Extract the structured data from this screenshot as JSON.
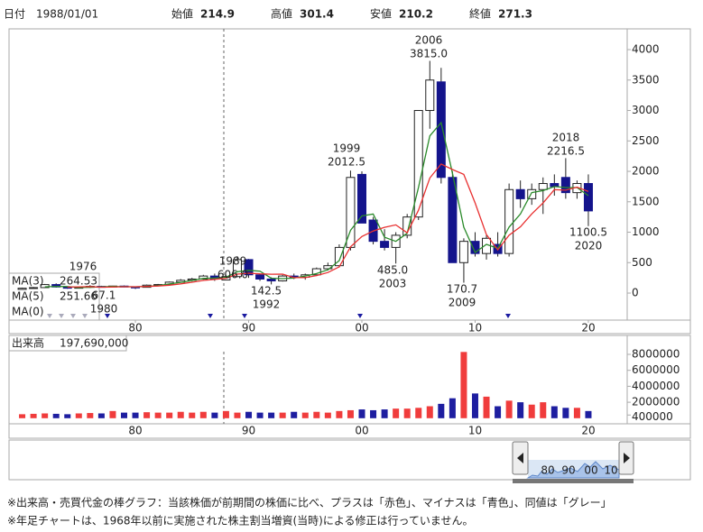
{
  "header": {
    "date_label": "日付",
    "date": "1988/01/01",
    "fields": [
      {
        "label": "始値",
        "value": 214.9,
        "color": "#000000"
      },
      {
        "label": "高値",
        "value": 301.4,
        "color": "#e02020"
      },
      {
        "label": "安値",
        "value": 210.2,
        "color": "#1a8a1a"
      },
      {
        "label": "終値",
        "value": 271.3,
        "color": "#000000"
      }
    ]
  },
  "chart_data": [
    {
      "type": "candlestick",
      "x": [
        1970,
        1971,
        1972,
        1973,
        1974,
        1975,
        1976,
        1977,
        1978,
        1979,
        1980,
        1981,
        1982,
        1983,
        1984,
        1985,
        1986,
        1987,
        1988,
        1989,
        1990,
        1991,
        1992,
        1993,
        1994,
        1995,
        1996,
        1997,
        1998,
        1999,
        2000,
        2001,
        2002,
        2003,
        2004,
        2005,
        2006,
        2007,
        2008,
        2009,
        2010,
        2011,
        2012,
        2013,
        2014,
        2015,
        2016,
        2017,
        2018,
        2019,
        2020
      ],
      "open": [
        60,
        80,
        90,
        140,
        100,
        80,
        95,
        110,
        100,
        115,
        100,
        95,
        130,
        140,
        180,
        210,
        230,
        280,
        214.9,
        271.3,
        550,
        300,
        230,
        200,
        280,
        260,
        300,
        400,
        450,
        750,
        1950,
        1200,
        850,
        750,
        950,
        1250,
        3000,
        3470,
        1900,
        500,
        850,
        650,
        800,
        650,
        1700,
        1550,
        1700,
        1800,
        1900,
        1650,
        1800
      ],
      "high": [
        90,
        100,
        150,
        160,
        110,
        100,
        130,
        120,
        120,
        125,
        110,
        140,
        150,
        190,
        230,
        250,
        300,
        320,
        301.4,
        606,
        560,
        320,
        260,
        300,
        320,
        320,
        420,
        500,
        800,
        2012.5,
        2000,
        1250,
        1050,
        1000,
        1300,
        3000,
        3815,
        3700,
        2000,
        900,
        1000,
        950,
        1000,
        1800,
        1850,
        1800,
        1900,
        1950,
        2216.5,
        1850,
        1950
      ],
      "low": [
        55,
        70,
        85,
        90,
        70,
        75,
        85,
        90,
        95,
        95,
        67.1,
        90,
        110,
        130,
        170,
        190,
        220,
        200,
        210.2,
        260,
        250,
        200,
        142.5,
        190,
        230,
        220,
        280,
        370,
        420,
        700,
        1150,
        800,
        700,
        485,
        900,
        1200,
        2700,
        1800,
        500,
        170.7,
        600,
        550,
        600,
        600,
        1400,
        1450,
        1300,
        1600,
        1550,
        1550,
        1100.5
      ],
      "close": [
        80,
        90,
        140,
        100,
        80,
        95,
        110,
        100,
        115,
        100,
        95,
        130,
        140,
        180,
        210,
        230,
        280,
        230,
        271.3,
        550,
        300,
        230,
        200,
        280,
        260,
        300,
        400,
        450,
        750,
        1900,
        1150,
        850,
        750,
        950,
        1250,
        3000,
        3500,
        1900,
        500,
        850,
        650,
        900,
        650,
        1700,
        1550,
        1700,
        1800,
        1750,
        1650,
        1800,
        1350
      ],
      "up_color": "#ffffff",
      "down_color": "#14148c",
      "series": [
        {
          "name": "MA(3)",
          "color": "#2a8a2a",
          "legend_value": 264.53,
          "values": [
            null,
            null,
            103,
            110,
            107,
            92,
            95,
            102,
            108,
            105,
            103,
            108,
            122,
            150,
            177,
            207,
            240,
            247,
            260,
            350,
            374,
            360,
            243,
            237,
            247,
            280,
            320,
            383,
            533,
            1033,
            1267,
            1300,
            917,
            850,
            983,
            1733,
            2583,
            2800,
            1967,
            1083,
            667,
            800,
            733,
            1083,
            1300,
            1650,
            1683,
            1750,
            1733,
            1733,
            1600
          ]
        },
        {
          "name": "MA(5)",
          "color": "#e83030",
          "legend_value": 251.66,
          "values": [
            null,
            null,
            null,
            null,
            98,
            103,
            105,
            97,
            100,
            104,
            104,
            108,
            116,
            129,
            151,
            178,
            208,
            226,
            244,
            312,
            326,
            316,
            310,
            312,
            254,
            254,
            288,
            338,
            432,
            760,
            930,
            1020,
            1080,
            1120,
            990,
            1360,
            1890,
            2120,
            2030,
            1950,
            1480,
            960,
            710,
            950,
            1090,
            1300,
            1480,
            1700,
            1690,
            1740,
            1670
          ]
        },
        {
          "name": "MA(0)",
          "color": "#1a1aa0"
        }
      ],
      "annotations": [
        {
          "top": "1976"
        },
        {
          "top": "67.1",
          "bottom": "1980"
        },
        {
          "top": "1989",
          "bottom": "606.0"
        },
        {
          "top": "142.5",
          "bottom": "1992"
        },
        {
          "top": "1999",
          "bottom": "2012.5"
        },
        {
          "top": "485.0",
          "bottom": "2003"
        },
        {
          "top": "2006",
          "bottom": "3815.0"
        },
        {
          "top": "170.7",
          "bottom": "2009"
        },
        {
          "top": "2018",
          "bottom": "2216.5"
        },
        {
          "top": "1100.5",
          "bottom": "2020"
        }
      ],
      "xlim": [
        1968.84,
        2023.43
      ],
      "xticks": [
        {
          "value": 1980,
          "label": "80"
        },
        {
          "value": 1990,
          "label": "90"
        },
        {
          "value": 2000,
          "label": "00"
        },
        {
          "value": 2010,
          "label": "10"
        },
        {
          "value": 2020,
          "label": "20"
        }
      ],
      "ylim": [
        -444,
        4341
      ],
      "yticks": [
        0,
        500,
        1000,
        1500,
        2000,
        2500,
        3000,
        3500,
        4000
      ]
    },
    {
      "type": "bar",
      "title": "出来高",
      "current_value": "197,690,000",
      "values": [
        500000,
        550000,
        600000,
        550000,
        500000,
        600000,
        650000,
        600000,
        900000,
        700000,
        700000,
        750000,
        700000,
        700000,
        800000,
        700000,
        800000,
        700000,
        900000,
        700000,
        800000,
        700000,
        700000,
        700000,
        800000,
        700000,
        800000,
        700000,
        900000,
        1000000,
        1100000,
        1000000,
        1100000,
        1200000,
        1200000,
        1300000,
        1500000,
        1800000,
        2500000,
        8300000,
        3100000,
        2700000,
        1500000,
        2200000,
        2000000,
        1700000,
        2000000,
        1500000,
        1300000,
        1300000,
        900000
      ],
      "up_color": "#f03c3c",
      "down_color": "#1e1ea0",
      "first_tick_color": "#f03c3c",
      "ylim": [
        -700000,
        10370000
      ],
      "yticks": [
        400000,
        2000000,
        4000000,
        6000000,
        8000000
      ]
    }
  ],
  "navigator": {
    "labels": [
      "80",
      "90",
      "00",
      "10"
    ]
  },
  "footnotes": [
    "※出来高・売買代金の棒グラフ：当該株価が前期間の株価に比べ、プラスは「赤色」、マイナスは「青色」、同値は「グレー」",
    "※年足チャートは、1968年以前に実施された株主割当増資(当時)による修正は行っていません。"
  ]
}
